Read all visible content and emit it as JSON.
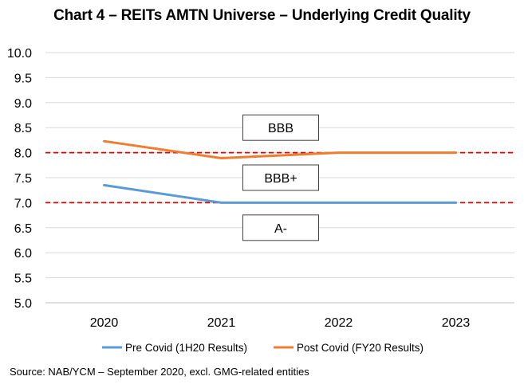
{
  "title": "Chart 4 – REITs AMTN Universe – Underlying Credit Quality",
  "source": "Source: NAB/YCM – September 2020, excl. GMG-related entities",
  "chart_data": {
    "type": "line",
    "categories": [
      "2020",
      "2021",
      "2022",
      "2023"
    ],
    "ylim": [
      5.0,
      10.0
    ],
    "yticks": [
      "5.0",
      "5.5",
      "6.0",
      "6.5",
      "7.0",
      "7.5",
      "8.0",
      "8.5",
      "9.0",
      "9.5",
      "10.0"
    ],
    "grid": true,
    "legend_position": "bottom",
    "series": [
      {
        "name": "Pre Covid (1H20 Results)",
        "values": [
          7.35,
          7.0,
          7.0,
          7.0
        ],
        "color": "#5B9BD5"
      },
      {
        "name": "Post Covid (FY20 Results)",
        "values": [
          8.23,
          7.89,
          8.0,
          8.0
        ],
        "color": "#ED7D31"
      }
    ],
    "reference_lines": [
      {
        "y": 8.0,
        "color": "#E00000",
        "style": "dashed"
      },
      {
        "y": 7.0,
        "color": "#E00000",
        "style": "dashed"
      }
    ],
    "annotations": [
      {
        "text": "BBB",
        "y": 8.5
      },
      {
        "text": "BBB+",
        "y": 7.5
      },
      {
        "text": "A-",
        "y": 6.5
      }
    ]
  }
}
